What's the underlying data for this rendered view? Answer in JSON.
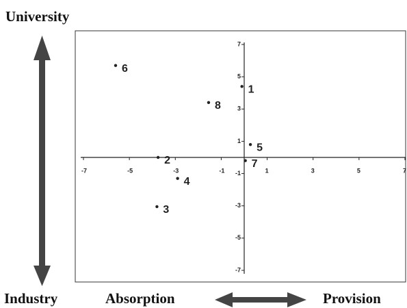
{
  "chart_data": {
    "type": "scatter",
    "x": [
      -5.6,
      -0.1,
      -1.55,
      0.27,
      -3.75,
      0.05,
      -2.9,
      -3.8
    ],
    "values": [
      5.7,
      4.4,
      3.4,
      0.8,
      0,
      -0.2,
      -1.3,
      -3.05
    ],
    "labels": [
      "6",
      "1",
      "8",
      "5",
      "2",
      "7",
      "4",
      "3"
    ],
    "color": "#222222",
    "xlim": [
      -7,
      7
    ],
    "xticks": [
      -7,
      -5,
      -3,
      -1,
      1,
      3,
      5,
      7
    ],
    "ylim": [
      -7,
      7
    ],
    "yticks": [
      7,
      5,
      3,
      1,
      -1,
      -3,
      -5,
      -7
    ],
    "y_top_label": "University",
    "y_bottom_label": "Industry",
    "x_left_label": "Absorption",
    "x_right_label": "Provision"
  }
}
